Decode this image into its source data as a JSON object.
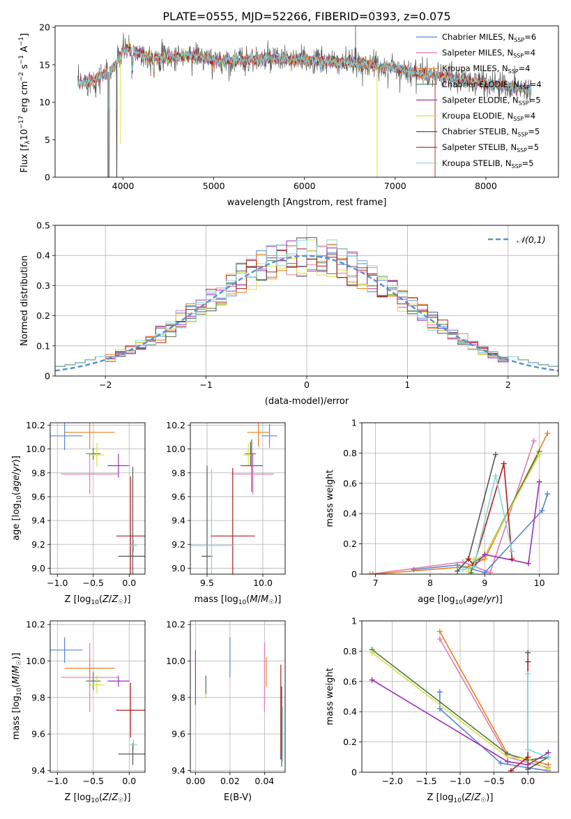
{
  "figure": {
    "title": "PLATE=0555, MJD=52266, FIBERID=0393, z=0.075"
  },
  "series": [
    {
      "key": "chabrier_miles",
      "label": "Chabrier MILES, N_SSP=6",
      "color": "#5b84d6"
    },
    {
      "key": "salpeter_miles",
      "label": "Salpeter MILES, N_SSP=4",
      "color": "#e37aae"
    },
    {
      "key": "kroupa_miles",
      "label": "Kroupa MILES, N_SSP=4",
      "color": "#e8801f"
    },
    {
      "key": "chabrier_elodie",
      "label": "Chabrier ELODIE, N_SSP=4",
      "color": "#4a7a4a"
    },
    {
      "key": "salpeter_elodie",
      "label": "Salpeter ELODIE, N_SSP=5",
      "color": "#9b30b0"
    },
    {
      "key": "kroupa_elodie",
      "label": "Kroupa ELODIE, N_SSP=4",
      "color": "#d8e040"
    },
    {
      "key": "chabrier_stelib",
      "label": "Chabrier STELIB, N_SSP=5",
      "color": "#555555"
    },
    {
      "key": "salpeter_stelib",
      "label": "Salpeter STELIB, N_SSP=5",
      "color": "#b01c1c"
    },
    {
      "key": "kroupa_stelib",
      "label": "Kroupa STELIB, N_SSP=5",
      "color": "#7fd8d8"
    }
  ],
  "chart_data": [
    {
      "id": "spectrum",
      "type": "line",
      "xlabel": "wavelength [Angstrom, rest frame]",
      "ylabel": "Flux [f_λ 10^-17 erg cm^-2 s^-1 A^-1]",
      "xlim": [
        3250,
        8800
      ],
      "ylim": [
        0,
        20.2
      ],
      "xticks": [
        4000,
        5000,
        6000,
        7000,
        8000
      ],
      "yticks": [
        0,
        5,
        10,
        15,
        20
      ],
      "continuum": {
        "x": [
          3500,
          3700,
          3900,
          4000,
          4100,
          4300,
          4500,
          4800,
          5000,
          5300,
          5600,
          6000,
          6300,
          6600,
          7000,
          7400,
          7800,
          8200,
          8500
        ],
        "y": [
          12.5,
          13.0,
          14.5,
          17.0,
          17.0,
          16.0,
          16.0,
          16.3,
          15.5,
          15.6,
          15.8,
          15.6,
          15.3,
          15.2,
          14.5,
          13.6,
          12.9,
          12.2,
          11.7
        ]
      },
      "spikes": [
        {
          "x": 3840,
          "y": 0
        },
        {
          "x": 3930,
          "y": 0
        },
        {
          "x": 3970,
          "y": 4.5
        },
        {
          "x": 6563,
          "y": 20.2
        },
        {
          "x": 6800,
          "y": 0
        },
        {
          "x": 7440,
          "y": 0
        }
      ],
      "legend_loc": "upper right",
      "grid": false
    },
    {
      "id": "residuals",
      "type": "step",
      "xlabel": "(data-model)/error",
      "ylabel": "Normed distribution",
      "xlim": [
        -2.5,
        2.5
      ],
      "ylim": [
        0,
        0.5
      ],
      "xticks": [
        -2,
        -1,
        0,
        1,
        2
      ],
      "yticks": [
        0,
        0.1,
        0.2,
        0.3,
        0.4,
        0.5
      ],
      "reference": {
        "label": "𝒩(0,1)",
        "type": "gaussian",
        "mean": 0,
        "sigma": 1,
        "color": "#5b8fd6"
      },
      "bin_width": 0.1,
      "grid": true,
      "legend_loc": "upper right"
    },
    {
      "id": "age_vs_Z",
      "type": "errorbar",
      "xlabel": "Z [log10(Z/Z☉)]",
      "ylabel": "age  [log10(age/yr)]",
      "xlim": [
        -1.1,
        0.22
      ],
      "ylim": [
        8.95,
        10.22
      ],
      "xticks": [
        -1.0,
        -0.5,
        0.0
      ],
      "xticklabels": [
        "−1.0",
        "−0.5",
        "0.0"
      ],
      "yticks": [
        9.0,
        9.2,
        9.4,
        9.6,
        9.8,
        10.0,
        10.2
      ],
      "yticklabels": [
        "9.0",
        "9.2",
        "9.4",
        "9.6",
        "9.8",
        "10.0",
        "10.2"
      ],
      "points": [
        {
          "s": "chabrier_miles",
          "x": -0.9,
          "y": 10.11,
          "xerr": 0.25,
          "yerr": 0.12
        },
        {
          "s": "kroupa_miles",
          "x": -0.55,
          "y": 10.14,
          "xerr": 0.35,
          "yerr": 0.14
        },
        {
          "s": "chabrier_elodie",
          "x": -0.5,
          "y": 9.96,
          "xerr": 0.1,
          "yerr": 0.05
        },
        {
          "s": "kroupa_elodie",
          "x": -0.45,
          "y": 9.95,
          "xerr": 0.1,
          "yerr": 0.1
        },
        {
          "s": "salpeter_elodie",
          "x": -0.15,
          "y": 9.86,
          "xerr": 0.15,
          "yerr": 0.1
        },
        {
          "s": "salpeter_miles",
          "x": -0.55,
          "y": 9.79,
          "xerr": 0.4,
          "yerr": 0.17
        },
        {
          "s": "salpeter_stelib",
          "x": 0.02,
          "y": 9.27,
          "xerr": 0.2,
          "yerr": 0.5
        },
        {
          "s": "chabrier_stelib",
          "x": 0.05,
          "y": 9.1,
          "xerr": 0.2,
          "yerr": 0.75
        },
        {
          "s": "kroupa_stelib",
          "x": 0.06,
          "y": 9.19,
          "xerr": 0.05,
          "yerr": 0.05
        }
      ]
    },
    {
      "id": "age_vs_mass",
      "type": "errorbar",
      "xlabel": "mass [log10(M/M☉)]",
      "ylabel": "",
      "xlim": [
        9.35,
        10.2
      ],
      "ylim": [
        8.95,
        10.22
      ],
      "xticks": [
        9.5,
        10.0
      ],
      "xticklabels": [
        "9.5",
        "10.0"
      ],
      "yticks": [
        9.0,
        9.2,
        9.4,
        9.6,
        9.8,
        10.0,
        10.2
      ],
      "yticklabels": [
        "9.0",
        "9.2",
        "9.4",
        "9.6",
        "9.8",
        "10.0",
        "10.2"
      ],
      "points": [
        {
          "s": "chabrier_miles",
          "x": 10.06,
          "y": 10.11,
          "xerr": 0.07,
          "yerr": 0.1
        },
        {
          "s": "kroupa_miles",
          "x": 9.96,
          "y": 10.14,
          "xerr": 0.1,
          "yerr": 0.12
        },
        {
          "s": "chabrier_elodie",
          "x": 9.89,
          "y": 9.96,
          "xerr": 0.05,
          "yerr": 0.1
        },
        {
          "s": "kroupa_elodie",
          "x": 9.87,
          "y": 9.95,
          "xerr": 0.05,
          "yerr": 0.1
        },
        {
          "s": "salpeter_elodie",
          "x": 9.9,
          "y": 9.86,
          "xerr": 0.1,
          "yerr": 0.22
        },
        {
          "s": "salpeter_miles",
          "x": 9.91,
          "y": 9.79,
          "xerr": 0.19,
          "yerr": 0.17
        },
        {
          "s": "salpeter_stelib",
          "x": 9.73,
          "y": 9.27,
          "xerr": 0.2,
          "yerr": 0.57
        },
        {
          "s": "chabrier_stelib",
          "x": 9.5,
          "y": 9.1,
          "xerr": 0.05,
          "yerr": 0.76
        },
        {
          "s": "kroupa_stelib",
          "x": 9.54,
          "y": 9.19,
          "xerr": 0.2,
          "yerr": 0.64
        }
      ]
    },
    {
      "id": "mass_weight_vs_age",
      "type": "line",
      "xlabel": "age  [log10(age/yr)]",
      "ylabel": "mass weight",
      "xlim": [
        6.75,
        10.35
      ],
      "ylim": [
        0,
        1.0
      ],
      "xticks": [
        7,
        8,
        9,
        10
      ],
      "yticks": [
        0,
        0.2,
        0.4,
        0.6,
        0.8,
        1.0
      ],
      "series": [
        {
          "s": "salpeter_miles",
          "x": [
            6.9,
            8.6,
            9.1,
            9.9
          ],
          "y": [
            0.0,
            0.08,
            0.01,
            0.88
          ]
        },
        {
          "s": "kroupa_miles",
          "x": [
            6.95,
            8.7,
            9.0,
            10.15
          ],
          "y": [
            0.0,
            0.05,
            0.1,
            0.93
          ]
        },
        {
          "s": "chabrier_miles",
          "x": [
            7.7,
            8.5,
            9.0,
            10.05,
            10.15
          ],
          "y": [
            0.03,
            0.06,
            0.01,
            0.42,
            0.53
          ]
        },
        {
          "s": "chabrier_elodie",
          "x": [
            8.75,
            8.8,
            9.0,
            10.0
          ],
          "y": [
            0.01,
            0.08,
            0.12,
            0.81
          ]
        },
        {
          "s": "kroupa_elodie",
          "x": [
            8.7,
            8.8,
            9.0,
            10.0
          ],
          "y": [
            0.02,
            0.1,
            0.12,
            0.79
          ]
        },
        {
          "s": "salpeter_elodie",
          "x": [
            8.8,
            9.0,
            9.8,
            10.0
          ],
          "y": [
            0.05,
            0.13,
            0.07,
            0.61
          ]
        },
        {
          "s": "chabrier_stelib",
          "x": [
            8.5,
            8.7,
            9.2
          ],
          "y": [
            0.02,
            0.1,
            0.79
          ]
        },
        {
          "s": "salpeter_stelib",
          "x": [
            8.7,
            8.8,
            9.35,
            9.5
          ],
          "y": [
            0.1,
            0.06,
            0.73,
            0.1
          ]
        },
        {
          "s": "kroupa_stelib",
          "x": [
            8.6,
            8.8,
            9.2,
            9.5
          ],
          "y": [
            0.03,
            0.05,
            0.65,
            0.15
          ]
        }
      ]
    },
    {
      "id": "mass_vs_Z",
      "type": "errorbar",
      "xlabel": "Z [log10(Z/Z☉)]",
      "ylabel": "mass [log10(M/M☉)]",
      "xlim": [
        -1.1,
        0.22
      ],
      "ylim": [
        9.39,
        10.22
      ],
      "xticks": [
        -1.0,
        -0.5,
        0.0
      ],
      "xticklabels": [
        "−1.0",
        "−0.5",
        "0.0"
      ],
      "yticks": [
        9.4,
        9.6,
        9.8,
        10.0,
        10.2
      ],
      "yticklabels": [
        "9.4",
        "9.6",
        "9.8",
        "10.0",
        "10.2"
      ],
      "points": [
        {
          "s": "chabrier_miles",
          "x": -0.9,
          "y": 10.06,
          "xerr": 0.25,
          "yerr": 0.07
        },
        {
          "s": "kroupa_miles",
          "x": -0.55,
          "y": 9.96,
          "xerr": 0.35,
          "yerr": 0.06
        },
        {
          "s": "chabrier_elodie",
          "x": -0.5,
          "y": 9.89,
          "xerr": 0.1,
          "yerr": 0.05
        },
        {
          "s": "kroupa_elodie",
          "x": -0.45,
          "y": 9.87,
          "xerr": 0.1,
          "yerr": 0.05
        },
        {
          "s": "salpeter_elodie",
          "x": -0.15,
          "y": 9.89,
          "xerr": 0.15,
          "yerr": 0.03
        },
        {
          "s": "salpeter_miles",
          "x": -0.55,
          "y": 9.91,
          "xerr": 0.4,
          "yerr": 0.19
        },
        {
          "s": "salpeter_stelib",
          "x": 0.02,
          "y": 9.73,
          "xerr": 0.2,
          "yerr": 0.15
        },
        {
          "s": "chabrier_stelib",
          "x": 0.05,
          "y": 9.49,
          "xerr": 0.2,
          "yerr": 0.06
        },
        {
          "s": "kroupa_stelib",
          "x": 0.06,
          "y": 9.54,
          "xerr": 0.05,
          "yerr": 0.03
        }
      ]
    },
    {
      "id": "mass_vs_ebv",
      "type": "errorbar",
      "xlabel": "E(B-V)",
      "ylabel": "",
      "xlim": [
        -0.003,
        0.052
      ],
      "ylim": [
        9.39,
        10.22
      ],
      "xticks": [
        0.0,
        0.02,
        0.04
      ],
      "xticklabels": [
        "0.00",
        "0.02",
        "0.04"
      ],
      "yticks": [
        9.4,
        9.6,
        9.8,
        10.0,
        10.2
      ],
      "yticklabels": [
        "9.4",
        "9.6",
        "9.8",
        "10.0",
        "10.2"
      ],
      "points": [
        {
          "s": "chabrier_miles",
          "x": 0.02,
          "y": 10.02,
          "xerr": 0,
          "yerr": 0.11
        },
        {
          "s": "salpeter_miles",
          "x": 0.04,
          "y": 9.91,
          "xerr": 0,
          "yerr": 0.19
        },
        {
          "s": "kroupa_miles",
          "x": 0.041,
          "y": 9.94,
          "xerr": 0,
          "yerr": 0.08
        },
        {
          "s": "salpeter_elodie",
          "x": 0.0,
          "y": 9.91,
          "xerr": 0,
          "yerr": 0.15
        },
        {
          "s": "kroupa_elodie",
          "x": 0.006,
          "y": 9.86,
          "xerr": 0,
          "yerr": 0.06
        },
        {
          "s": "chabrier_elodie",
          "x": 0.006,
          "y": 9.87,
          "xerr": 0,
          "yerr": 0.05
        },
        {
          "s": "salpeter_stelib",
          "x": 0.0495,
          "y": 9.72,
          "xerr": 0,
          "yerr": 0.26
        },
        {
          "s": "chabrier_stelib",
          "x": 0.05,
          "y": 9.64,
          "xerr": 0,
          "yerr": 0.22
        },
        {
          "s": "kroupa_stelib",
          "x": 0.0505,
          "y": 9.6,
          "xerr": 0,
          "yerr": 0.15
        }
      ]
    },
    {
      "id": "mass_weight_vs_Z",
      "type": "line",
      "xlabel": "Z [log10(Z/Z☉)]",
      "ylabel": "mass weight",
      "xlim": [
        -2.45,
        0.45
      ],
      "ylim": [
        0,
        1.0
      ],
      "xticks": [
        -2.0,
        -1.5,
        -1.0,
        -0.5,
        0.0
      ],
      "xticklabels": [
        "−2.0",
        "−1.5",
        "−1.0",
        "−0.5",
        "0.0"
      ],
      "yticks": [
        0,
        0.2,
        0.4,
        0.6,
        0.8,
        1.0
      ],
      "series": [
        {
          "s": "salpeter_miles",
          "x": [
            -1.3,
            -0.3,
            0.3
          ],
          "y": [
            0.88,
            0.1,
            0.03
          ]
        },
        {
          "s": "kroupa_miles",
          "x": [
            -1.3,
            -0.3,
            0.3
          ],
          "y": [
            0.93,
            0.12,
            0.05
          ]
        },
        {
          "s": "chabrier_miles",
          "x": [
            -1.3,
            -1.3,
            -0.4,
            0.0,
            0.3
          ],
          "y": [
            0.53,
            0.42,
            0.06,
            0.03,
            0.01
          ]
        },
        {
          "s": "chabrier_elodie",
          "x": [
            -2.3,
            -0.3,
            0.0,
            0.3
          ],
          "y": [
            0.81,
            0.12,
            0.08,
            0.1
          ]
        },
        {
          "s": "kroupa_elodie",
          "x": [
            -2.3,
            -0.3,
            0.0,
            0.3
          ],
          "y": [
            0.79,
            0.1,
            0.09,
            0.02
          ]
        },
        {
          "s": "salpeter_elodie",
          "x": [
            -2.3,
            -0.3,
            0.0,
            0.3
          ],
          "y": [
            0.61,
            0.07,
            0.05,
            0.13
          ]
        },
        {
          "s": "chabrier_stelib",
          "x": [
            0.0,
            0.0,
            0.3
          ],
          "y": [
            0.79,
            0.02,
            0.1
          ]
        },
        {
          "s": "salpeter_stelib",
          "x": [
            0.0,
            0.0,
            -0.25
          ],
          "y": [
            0.73,
            0.1,
            0.01
          ]
        },
        {
          "s": "kroupa_stelib",
          "x": [
            0.0,
            0.0,
            0.3
          ],
          "y": [
            0.65,
            0.15,
            0.1
          ]
        }
      ]
    }
  ]
}
